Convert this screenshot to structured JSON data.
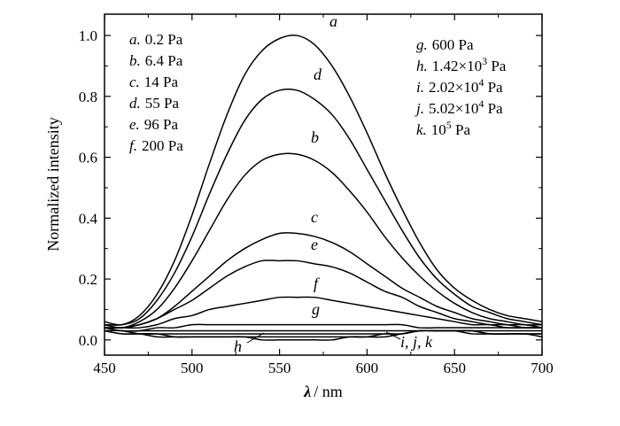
{
  "chart_data": {
    "type": "line",
    "xlabel": {
      "symbol": "λ",
      "unit": "/ nm"
    },
    "ylabel": "Normalized intensity",
    "xlim": [
      450,
      700
    ],
    "ylim": [
      -0.05,
      1.07
    ],
    "x_ticks": [
      450,
      500,
      550,
      600,
      650,
      700
    ],
    "y_ticks": [
      0.0,
      0.2,
      0.4,
      0.6,
      0.8,
      1.0
    ],
    "y_tick_labels": [
      "0.0",
      "0.2",
      "0.4",
      "0.6",
      "0.8",
      "1.0"
    ],
    "x": [
      450,
      460,
      470,
      480,
      490,
      500,
      510,
      520,
      530,
      540,
      550,
      560,
      570,
      580,
      590,
      600,
      610,
      620,
      630,
      640,
      650,
      660,
      670,
      680,
      690,
      700
    ],
    "series": [
      {
        "name": "a",
        "values": [
          0.06,
          0.05,
          0.08,
          0.15,
          0.26,
          0.41,
          0.58,
          0.74,
          0.87,
          0.95,
          0.99,
          1.0,
          0.97,
          0.9,
          0.8,
          0.68,
          0.55,
          0.43,
          0.32,
          0.23,
          0.17,
          0.13,
          0.1,
          0.08,
          0.07,
          0.06
        ]
      },
      {
        "name": "d",
        "values": [
          0.05,
          0.05,
          0.07,
          0.13,
          0.22,
          0.34,
          0.48,
          0.61,
          0.72,
          0.79,
          0.82,
          0.82,
          0.79,
          0.74,
          0.66,
          0.56,
          0.46,
          0.36,
          0.27,
          0.2,
          0.15,
          0.11,
          0.09,
          0.07,
          0.06,
          0.05
        ]
      },
      {
        "name": "b",
        "values": [
          0.05,
          0.04,
          0.06,
          0.1,
          0.17,
          0.26,
          0.36,
          0.46,
          0.54,
          0.59,
          0.61,
          0.61,
          0.59,
          0.55,
          0.49,
          0.42,
          0.34,
          0.27,
          0.21,
          0.16,
          0.12,
          0.09,
          0.07,
          0.06,
          0.05,
          0.05
        ]
      },
      {
        "name": "c",
        "values": [
          0.04,
          0.04,
          0.05,
          0.07,
          0.11,
          0.16,
          0.21,
          0.26,
          0.3,
          0.33,
          0.35,
          0.35,
          0.34,
          0.32,
          0.29,
          0.25,
          0.21,
          0.17,
          0.14,
          0.11,
          0.09,
          0.07,
          0.06,
          0.05,
          0.05,
          0.04
        ]
      },
      {
        "name": "e",
        "values": [
          0.04,
          0.04,
          0.05,
          0.07,
          0.1,
          0.13,
          0.17,
          0.21,
          0.24,
          0.26,
          0.26,
          0.26,
          0.25,
          0.24,
          0.22,
          0.19,
          0.16,
          0.14,
          0.11,
          0.09,
          0.07,
          0.06,
          0.05,
          0.05,
          0.04,
          0.04
        ]
      },
      {
        "name": "f",
        "values": [
          0.04,
          0.04,
          0.04,
          0.05,
          0.07,
          0.08,
          0.1,
          0.11,
          0.12,
          0.13,
          0.14,
          0.14,
          0.14,
          0.13,
          0.12,
          0.11,
          0.1,
          0.09,
          0.08,
          0.07,
          0.06,
          0.05,
          0.05,
          0.04,
          0.04,
          0.04
        ]
      },
      {
        "name": "g",
        "values": [
          0.04,
          0.03,
          0.03,
          0.04,
          0.04,
          0.05,
          0.05,
          0.05,
          0.05,
          0.05,
          0.05,
          0.05,
          0.05,
          0.05,
          0.05,
          0.05,
          0.05,
          0.05,
          0.04,
          0.04,
          0.04,
          0.04,
          0.04,
          0.04,
          0.04,
          0.04
        ]
      },
      {
        "name": "h",
        "values": [
          0.04,
          0.03,
          0.03,
          0.03,
          0.03,
          0.03,
          0.03,
          0.03,
          0.03,
          0.03,
          0.03,
          0.03,
          0.03,
          0.03,
          0.03,
          0.03,
          0.03,
          0.03,
          0.03,
          0.03,
          0.03,
          0.03,
          0.03,
          0.03,
          0.03,
          0.03
        ]
      },
      {
        "name": "i",
        "values": [
          0.03,
          0.03,
          0.02,
          0.02,
          0.02,
          0.02,
          0.02,
          0.02,
          0.02,
          0.02,
          0.02,
          0.02,
          0.02,
          0.02,
          0.02,
          0.02,
          0.02,
          0.02,
          0.03,
          0.03,
          0.03,
          0.03,
          0.02,
          0.02,
          0.02,
          0.02
        ]
      },
      {
        "name": "j",
        "values": [
          0.03,
          0.02,
          0.02,
          0.02,
          0.01,
          0.01,
          0.01,
          0.01,
          0.01,
          0.01,
          0.01,
          0.01,
          0.01,
          0.01,
          0.01,
          0.01,
          0.02,
          0.02,
          0.03,
          0.03,
          0.03,
          0.03,
          0.02,
          0.02,
          0.02,
          0.02
        ]
      },
      {
        "name": "k",
        "values": [
          0.03,
          0.02,
          0.02,
          0.01,
          0.01,
          0.01,
          0.01,
          0.01,
          0.01,
          0.0,
          0.0,
          0.0,
          0.0,
          0.0,
          0.01,
          0.01,
          0.01,
          0.02,
          0.03,
          0.03,
          0.03,
          0.02,
          0.02,
          0.02,
          0.02,
          0.01
        ]
      }
    ],
    "curve_labels": [
      "a",
      "d",
      "b",
      "c",
      "e",
      "f",
      "g",
      "h",
      "i, j, k"
    ],
    "legend_left": [
      {
        "key": "a.",
        "value": "0.2 Pa"
      },
      {
        "key": "b.",
        "value": "6.4 Pa"
      },
      {
        "key": "c.",
        "value": "14 Pa"
      },
      {
        "key": "d.",
        "value": "55 Pa"
      },
      {
        "key": "e.",
        "value": "96 Pa"
      },
      {
        "key": "f.",
        "value": "200 Pa"
      }
    ],
    "legend_right": [
      {
        "key": "g.",
        "mantissa": "600 Pa",
        "exponent": "",
        "suffix": ""
      },
      {
        "key": "h.",
        "mantissa": "1.42×10",
        "exponent": "3",
        "suffix": " Pa"
      },
      {
        "key": "i.",
        "mantissa": "2.02×10",
        "exponent": "4",
        "suffix": " Pa"
      },
      {
        "key": "j.",
        "mantissa": "5.02×10",
        "exponent": "4",
        "suffix": " Pa"
      },
      {
        "key": "k.",
        "mantissa": "10",
        "exponent": "5",
        "suffix": " Pa"
      }
    ],
    "grid": false,
    "legend_position": "top-left and top-right"
  }
}
